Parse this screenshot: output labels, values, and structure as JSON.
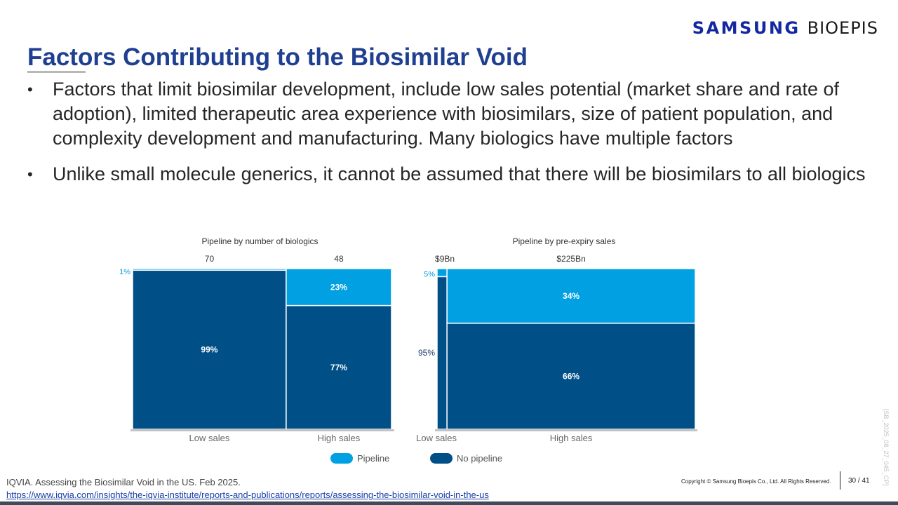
{
  "logo": {
    "brand": "SAMSUNG",
    "sub": "BIOEPIS"
  },
  "title": "Factors Contributing to the Biosimilar Void",
  "bullets": [
    "Factors that limit biosimilar development, include low sales potential (market share and rate of adoption), limited therapeutic area experience with biosimilars, size of patient population, and complexity development and manufacturing. Many biologics have multiple factors",
    "Unlike small molecule generics, it cannot be assumed that there will be biosimilars to all biologics"
  ],
  "bullet_glyph": "•",
  "colors": {
    "pipeline": "#00a0e2",
    "no_pipeline": "#004f86",
    "title": "#1f3f91",
    "logo": "#1428a0"
  },
  "chart_data": [
    {
      "type": "marimekko",
      "title": "Pipeline by number of biologics",
      "categories": [
        "Low sales",
        "High sales"
      ],
      "column_totals": [
        "70",
        "48"
      ],
      "column_total_values": [
        70,
        48
      ],
      "series": [
        {
          "name": "Pipeline",
          "values": [
            1,
            23
          ],
          "labels": [
            "1%",
            "23%"
          ]
        },
        {
          "name": "No pipeline",
          "values": [
            99,
            77
          ],
          "labels": [
            "99%",
            "77%"
          ]
        }
      ],
      "unit": "%"
    },
    {
      "type": "marimekko",
      "title": "Pipeline by pre-expiry sales",
      "categories": [
        "Low sales",
        "High sales"
      ],
      "column_totals": [
        "$9Bn",
        "$225Bn"
      ],
      "column_total_values": [
        9,
        225
      ],
      "series": [
        {
          "name": "Pipeline",
          "values": [
            5,
            34
          ],
          "labels": [
            "5%",
            "34%"
          ]
        },
        {
          "name": "No pipeline",
          "values": [
            95,
            66
          ],
          "labels": [
            "95%",
            "66%"
          ]
        }
      ],
      "unit": "%"
    }
  ],
  "legend": [
    {
      "name": "Pipeline",
      "color": "#00a0e2"
    },
    {
      "name": "No pipeline",
      "color": "#004f86"
    }
  ],
  "footer": {
    "source": "IQVIA. Assessing the Biosimilar Void in the US. Feb 2025.",
    "link": "https://www.iqvia.com/insights/the-iqvia-institute/reports-and-publications/reports/assessing-the-biosimilar-void-in-the-us",
    "copyright": "Copyright © Samsung Bioepis Co., Ltd. All Rights Reserved.",
    "page": "30 / 41",
    "doc_id": "[SB_2025_08_27_045_CP]"
  }
}
